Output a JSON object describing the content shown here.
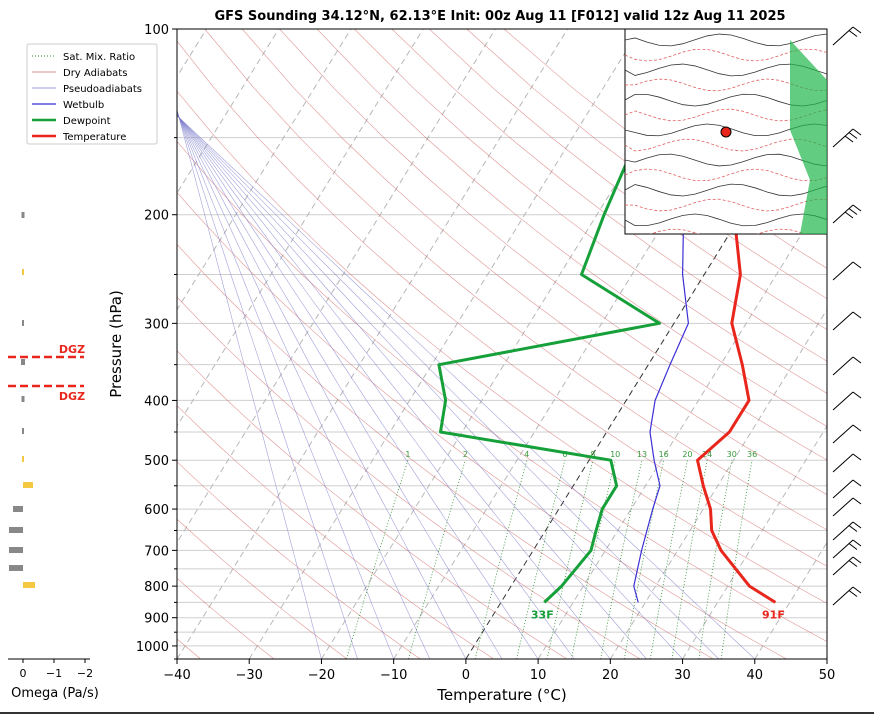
{
  "chart_data": {
    "type": "line",
    "title": "GFS Sounding 34.12°N, 62.13°E Init: 00z Aug 11 [F012] valid 12z Aug 11 2025",
    "xlabel": "Temperature (°C)",
    "ylabel": "Pressure (hPa)",
    "x_ticks": [
      "−40",
      "−30",
      "−20",
      "−10",
      "0",
      "10",
      "20",
      "30",
      "40",
      "50"
    ],
    "y_ticks": [
      "100",
      "200",
      "300",
      "400",
      "500",
      "600",
      "700",
      "800",
      "900",
      "1000"
    ],
    "xlim": [
      -40,
      50
    ],
    "ylim_hpa": [
      1050,
      100
    ],
    "log_pressure": true,
    "skew_t": true,
    "legend": {
      "placement": "top-left",
      "entries": [
        {
          "label": "Sat. Mix. Ratio",
          "color": "#2e8b2e",
          "style": "dotted"
        },
        {
          "label": "Dry Adiabats",
          "color": "#d46a6a",
          "style": "solid-thin"
        },
        {
          "label": "Pseudoadiabats",
          "color": "#7a7acc",
          "style": "solid-thin"
        },
        {
          "label": "Wetbulb",
          "color": "#3b2fd6",
          "style": "solid"
        },
        {
          "label": "Dewpoint",
          "color": "#16a03a",
          "style": "thick"
        },
        {
          "label": "Temperature",
          "color": "#e8261c",
          "style": "thick"
        }
      ]
    },
    "mixing_ratio_labels": [
      "1",
      "2",
      "4",
      "6",
      "8",
      "10",
      "13",
      "16",
      "20",
      "24",
      "30",
      "36"
    ],
    "series": [
      {
        "name": "Temperature",
        "color": "#e8261c",
        "points": [
          [
            850,
            38
          ],
          [
            800,
            33
          ],
          [
            700,
            26
          ],
          [
            650,
            23
          ],
          [
            600,
            21
          ],
          [
            550,
            18
          ],
          [
            500,
            15
          ],
          [
            450,
            17
          ],
          [
            400,
            17
          ],
          [
            350,
            13
          ],
          [
            300,
            8
          ],
          [
            250,
            5
          ],
          [
            200,
            -1
          ],
          [
            150,
            -8
          ],
          [
            100,
            -20
          ]
        ]
      },
      {
        "name": "Dewpoint",
        "color": "#16a03a",
        "points": [
          [
            850,
            6
          ],
          [
            800,
            7
          ],
          [
            700,
            8
          ],
          [
            650,
            7
          ],
          [
            600,
            6
          ],
          [
            550,
            6
          ],
          [
            500,
            3
          ],
          [
            450,
            -23
          ],
          [
            400,
            -25
          ],
          [
            350,
            -29
          ],
          [
            300,
            -2
          ],
          [
            250,
            -17
          ],
          [
            200,
            -19
          ],
          [
            150,
            -21
          ],
          [
            100,
            -21
          ]
        ]
      },
      {
        "name": "Wetbulb",
        "color": "#3b2fd6",
        "points": [
          [
            850,
            19
          ],
          [
            800,
            17
          ],
          [
            700,
            15
          ],
          [
            600,
            13
          ],
          [
            550,
            12
          ],
          [
            500,
            9
          ],
          [
            450,
            6
          ],
          [
            400,
            4
          ],
          [
            350,
            3
          ],
          [
            300,
            2
          ],
          [
            250,
            -3
          ],
          [
            200,
            -8
          ],
          [
            150,
            -14
          ],
          [
            100,
            -22
          ]
        ]
      }
    ],
    "surface_labels": {
      "temperature": "91F",
      "dewpoint": "33F"
    },
    "omega": {
      "xlabel": "Omega (Pa/s)",
      "ticks": [
        "0",
        "−1",
        "−2"
      ],
      "dgz_label": "DGZ",
      "dgz_color": "#e8261c"
    }
  }
}
